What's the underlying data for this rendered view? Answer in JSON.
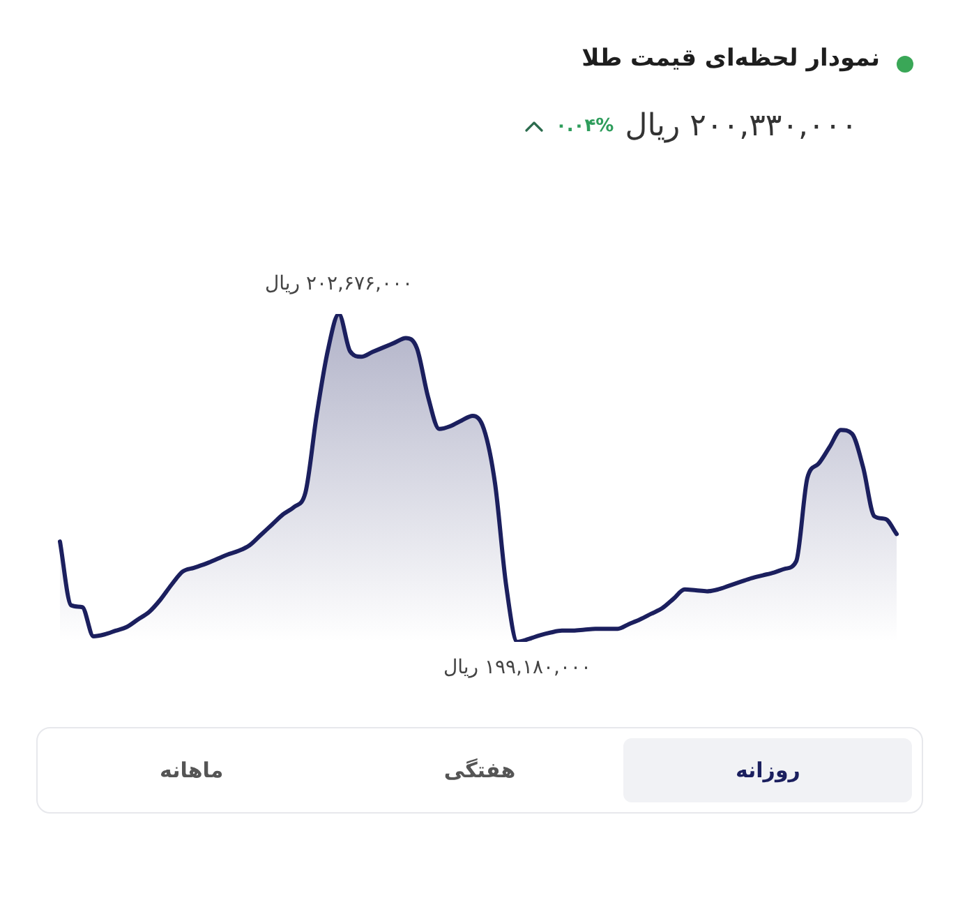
{
  "chart_data": {
    "type": "area",
    "title": "نمودار لحظه‌ای قیمت طلا",
    "subtitle": "۲۰۰,۳۳۰,۰۰۰ ریال",
    "annotations": [
      "۰.۰۴%",
      "روزانه",
      "هفتگی",
      "ماهانه"
    ],
    "categories": [
      null,
      null,
      null,
      null,
      null,
      null,
      null,
      null,
      null,
      null,
      null,
      null,
      null,
      null,
      null,
      null,
      null,
      null,
      null,
      null,
      null,
      null,
      null,
      null,
      null,
      null,
      null,
      null,
      null,
      null,
      null,
      null,
      null,
      null,
      null,
      null,
      null,
      null,
      null,
      null,
      null,
      null,
      null,
      null,
      null,
      null,
      null,
      null,
      null,
      null,
      null,
      null,
      null,
      null,
      null,
      null,
      null,
      null,
      null,
      null,
      null,
      null,
      null,
      null,
      null,
      null,
      null,
      null,
      null,
      null,
      null,
      null,
      null,
      null,
      null,
      null
    ],
    "values": [
      200250000,
      199570000,
      199550000,
      199240000,
      199260000,
      199300000,
      199340000,
      199420000,
      199500000,
      199630000,
      199790000,
      199930000,
      199970000,
      200010000,
      200060000,
      200110000,
      200150000,
      200210000,
      200320000,
      200430000,
      200540000,
      200620000,
      200770000,
      201590000,
      202280000,
      202676000,
      202280000,
      202220000,
      202270000,
      202320000,
      202370000,
      202420000,
      202310000,
      201790000,
      201450000,
      201480000,
      201540000,
      201590000,
      201450000,
      200870000,
      199780000,
      199180000,
      199210000,
      199250000,
      199280000,
      199300000,
      199300000,
      199310000,
      199320000,
      199320000,
      199320000,
      199370000,
      199420000,
      199480000,
      199540000,
      199640000,
      199740000,
      199730000,
      199720000,
      199740000,
      199780000,
      199820000,
      199860000,
      199890000,
      199920000,
      199960000,
      200040000,
      200930000,
      201080000,
      201260000,
      201440000,
      201400000,
      201040000,
      200520000,
      200490000,
      200330000
    ],
    "value_labels": [
      null,
      null,
      null,
      null,
      null,
      null,
      null,
      null,
      null,
      null,
      null,
      null,
      null,
      null,
      null,
      null,
      null,
      null,
      null,
      null,
      null,
      null,
      null,
      null,
      null,
      "۲۰۲,۶۷۶,۰۰۰ ریال",
      null,
      null,
      null,
      null,
      null,
      null,
      null,
      null,
      null,
      null,
      null,
      null,
      null,
      null,
      null,
      "۱۹۹,۱۸۰,۰۰۰ ریال",
      null,
      null,
      null,
      null,
      null,
      null,
      null,
      null,
      null,
      null,
      null,
      null,
      null,
      null,
      null,
      null,
      null,
      null,
      null,
      null,
      null,
      null,
      null,
      null,
      null,
      null,
      null,
      null,
      null,
      null,
      null,
      null,
      null,
      null
    ],
    "color": "#1b1f5e",
    "marker": "none",
    "tick_labels": false
  }
}
